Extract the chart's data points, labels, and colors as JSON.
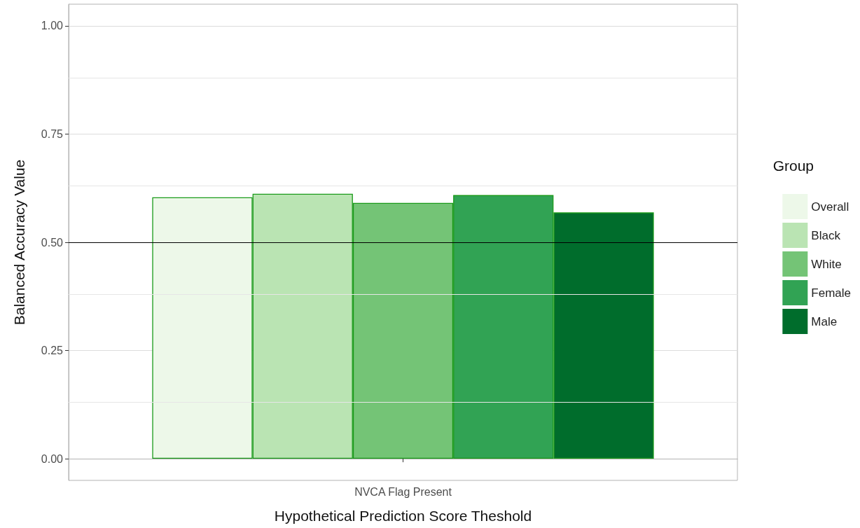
{
  "chart_data": {
    "type": "bar",
    "xlabel": "Hypothetical Prediction Score Theshold",
    "ylabel": "Balanced Accuracy Value",
    "legend_title": "Group",
    "categories": [
      "NVCA Flag Present"
    ],
    "series": [
      {
        "name": "Overall",
        "color": "#edf8e9",
        "values": [
          0.604
        ]
      },
      {
        "name": "Black",
        "color": "#bae4b3",
        "values": [
          0.612
        ]
      },
      {
        "name": "White",
        "color": "#74c476",
        "values": [
          0.591
        ]
      },
      {
        "name": "Female",
        "color": "#31a354",
        "values": [
          0.609
        ]
      },
      {
        "name": "Male",
        "color": "#006d2c",
        "values": [
          0.569
        ]
      }
    ],
    "ylim": [
      -0.05,
      1.05
    ],
    "yticks": [
      {
        "value": 0,
        "label": "0.00"
      },
      {
        "value": 0.25,
        "label": "0.25"
      },
      {
        "value": 0.5,
        "label": "0.50"
      },
      {
        "value": 0.75,
        "label": "0.75"
      },
      {
        "value": 1,
        "label": "1.00"
      }
    ],
    "ref_lines": [
      {
        "axis": "y",
        "value": 0.5,
        "color": "#000000"
      }
    ],
    "grid": true,
    "legend": "right"
  }
}
